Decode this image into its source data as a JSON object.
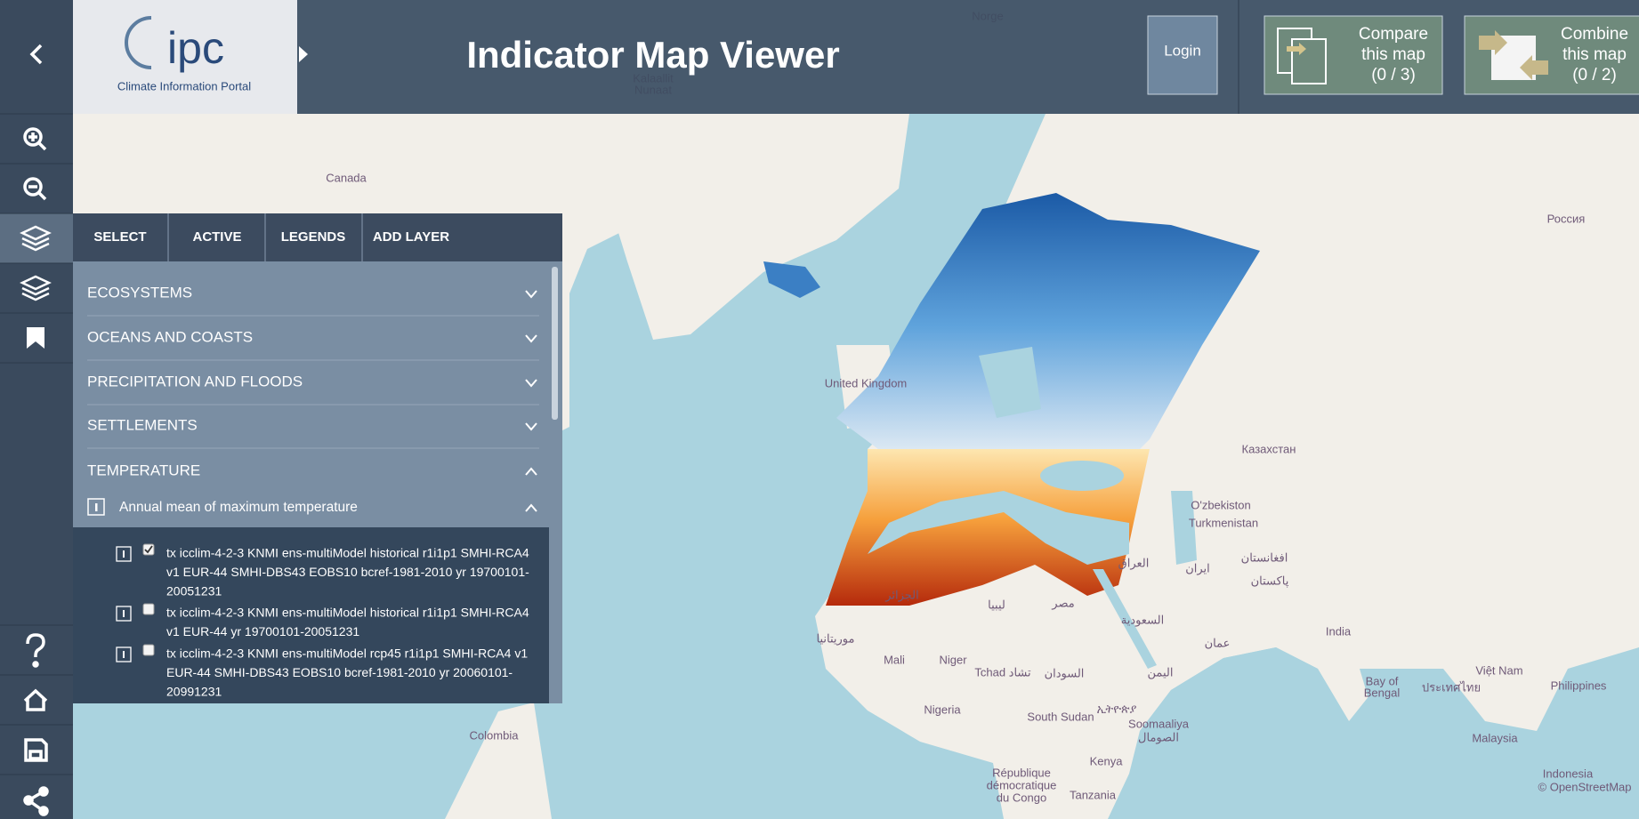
{
  "header": {
    "title": "Indicator Map Viewer",
    "logo_mark": "ipc",
    "logo_caption": "Climate Information Portal",
    "login": "Login",
    "compare": [
      "Compare",
      "this map",
      "(0 / 3)"
    ],
    "combine": [
      "Combine",
      "this map",
      "(0 / 2)"
    ]
  },
  "tabs": [
    "SELECT",
    "ACTIVE",
    "LEGENDS",
    "ADD LAYER"
  ],
  "categories": [
    "ECOSYSTEMS",
    "OCEANS AND COASTS",
    "PRECIPITATION AND FLOODS",
    "SETTLEMENTS",
    "TEMPERATURE"
  ],
  "subcategory": "Annual mean of maximum temperature",
  "layers": [
    {
      "checked": true,
      "lines": [
        "tx icclim-4-2-3 KNMI ens-multiModel historical r1i1p1 SMHI-RCA4",
        "v1 EUR-44 SMHI-DBS43 EOBS10 bcref-1981-2010 yr 19700101-",
        "20051231"
      ]
    },
    {
      "checked": false,
      "lines": [
        "tx icclim-4-2-3 KNMI ens-multiModel historical r1i1p1 SMHI-RCA4",
        "v1 EUR-44 yr 19700101-20051231"
      ]
    },
    {
      "checked": false,
      "lines": [
        "tx icclim-4-2-3 KNMI ens-multiModel rcp45 r1i1p1 SMHI-RCA4 v1",
        "EUR-44 SMHI-DBS43 EOBS10 bcref-1981-2010 yr 20060101-",
        "20991231"
      ]
    }
  ],
  "map_labels": [
    "Canada",
    "Norge",
    "Kalaallit",
    "Nunaat",
    "Россия",
    "United Kingdom",
    "Казахстан",
    "O'zbekiston",
    "Turkmenistan",
    "ایران",
    "افغانستان",
    "پاکستان",
    "العراق",
    "India",
    "الجزائر",
    "ليبيا",
    "مصر",
    "السعودية",
    "اليمن",
    "عمان",
    "السودان",
    "Mali",
    "Niger",
    "Tchad تشاد",
    "موريتانيا",
    "Nigeria",
    "South Sudan",
    "ኢትዮጵያ",
    "Soomaaliya",
    "الصومال",
    "Kenya",
    "Tanzania",
    "République",
    "démocratique",
    "du Congo",
    "Colombia",
    "Bay of",
    "Bengal",
    "Malaysia",
    "Indonesia",
    "Philippines",
    "Việt Nam",
    "ประเทศไทย",
    "© OpenStreetMap"
  ]
}
